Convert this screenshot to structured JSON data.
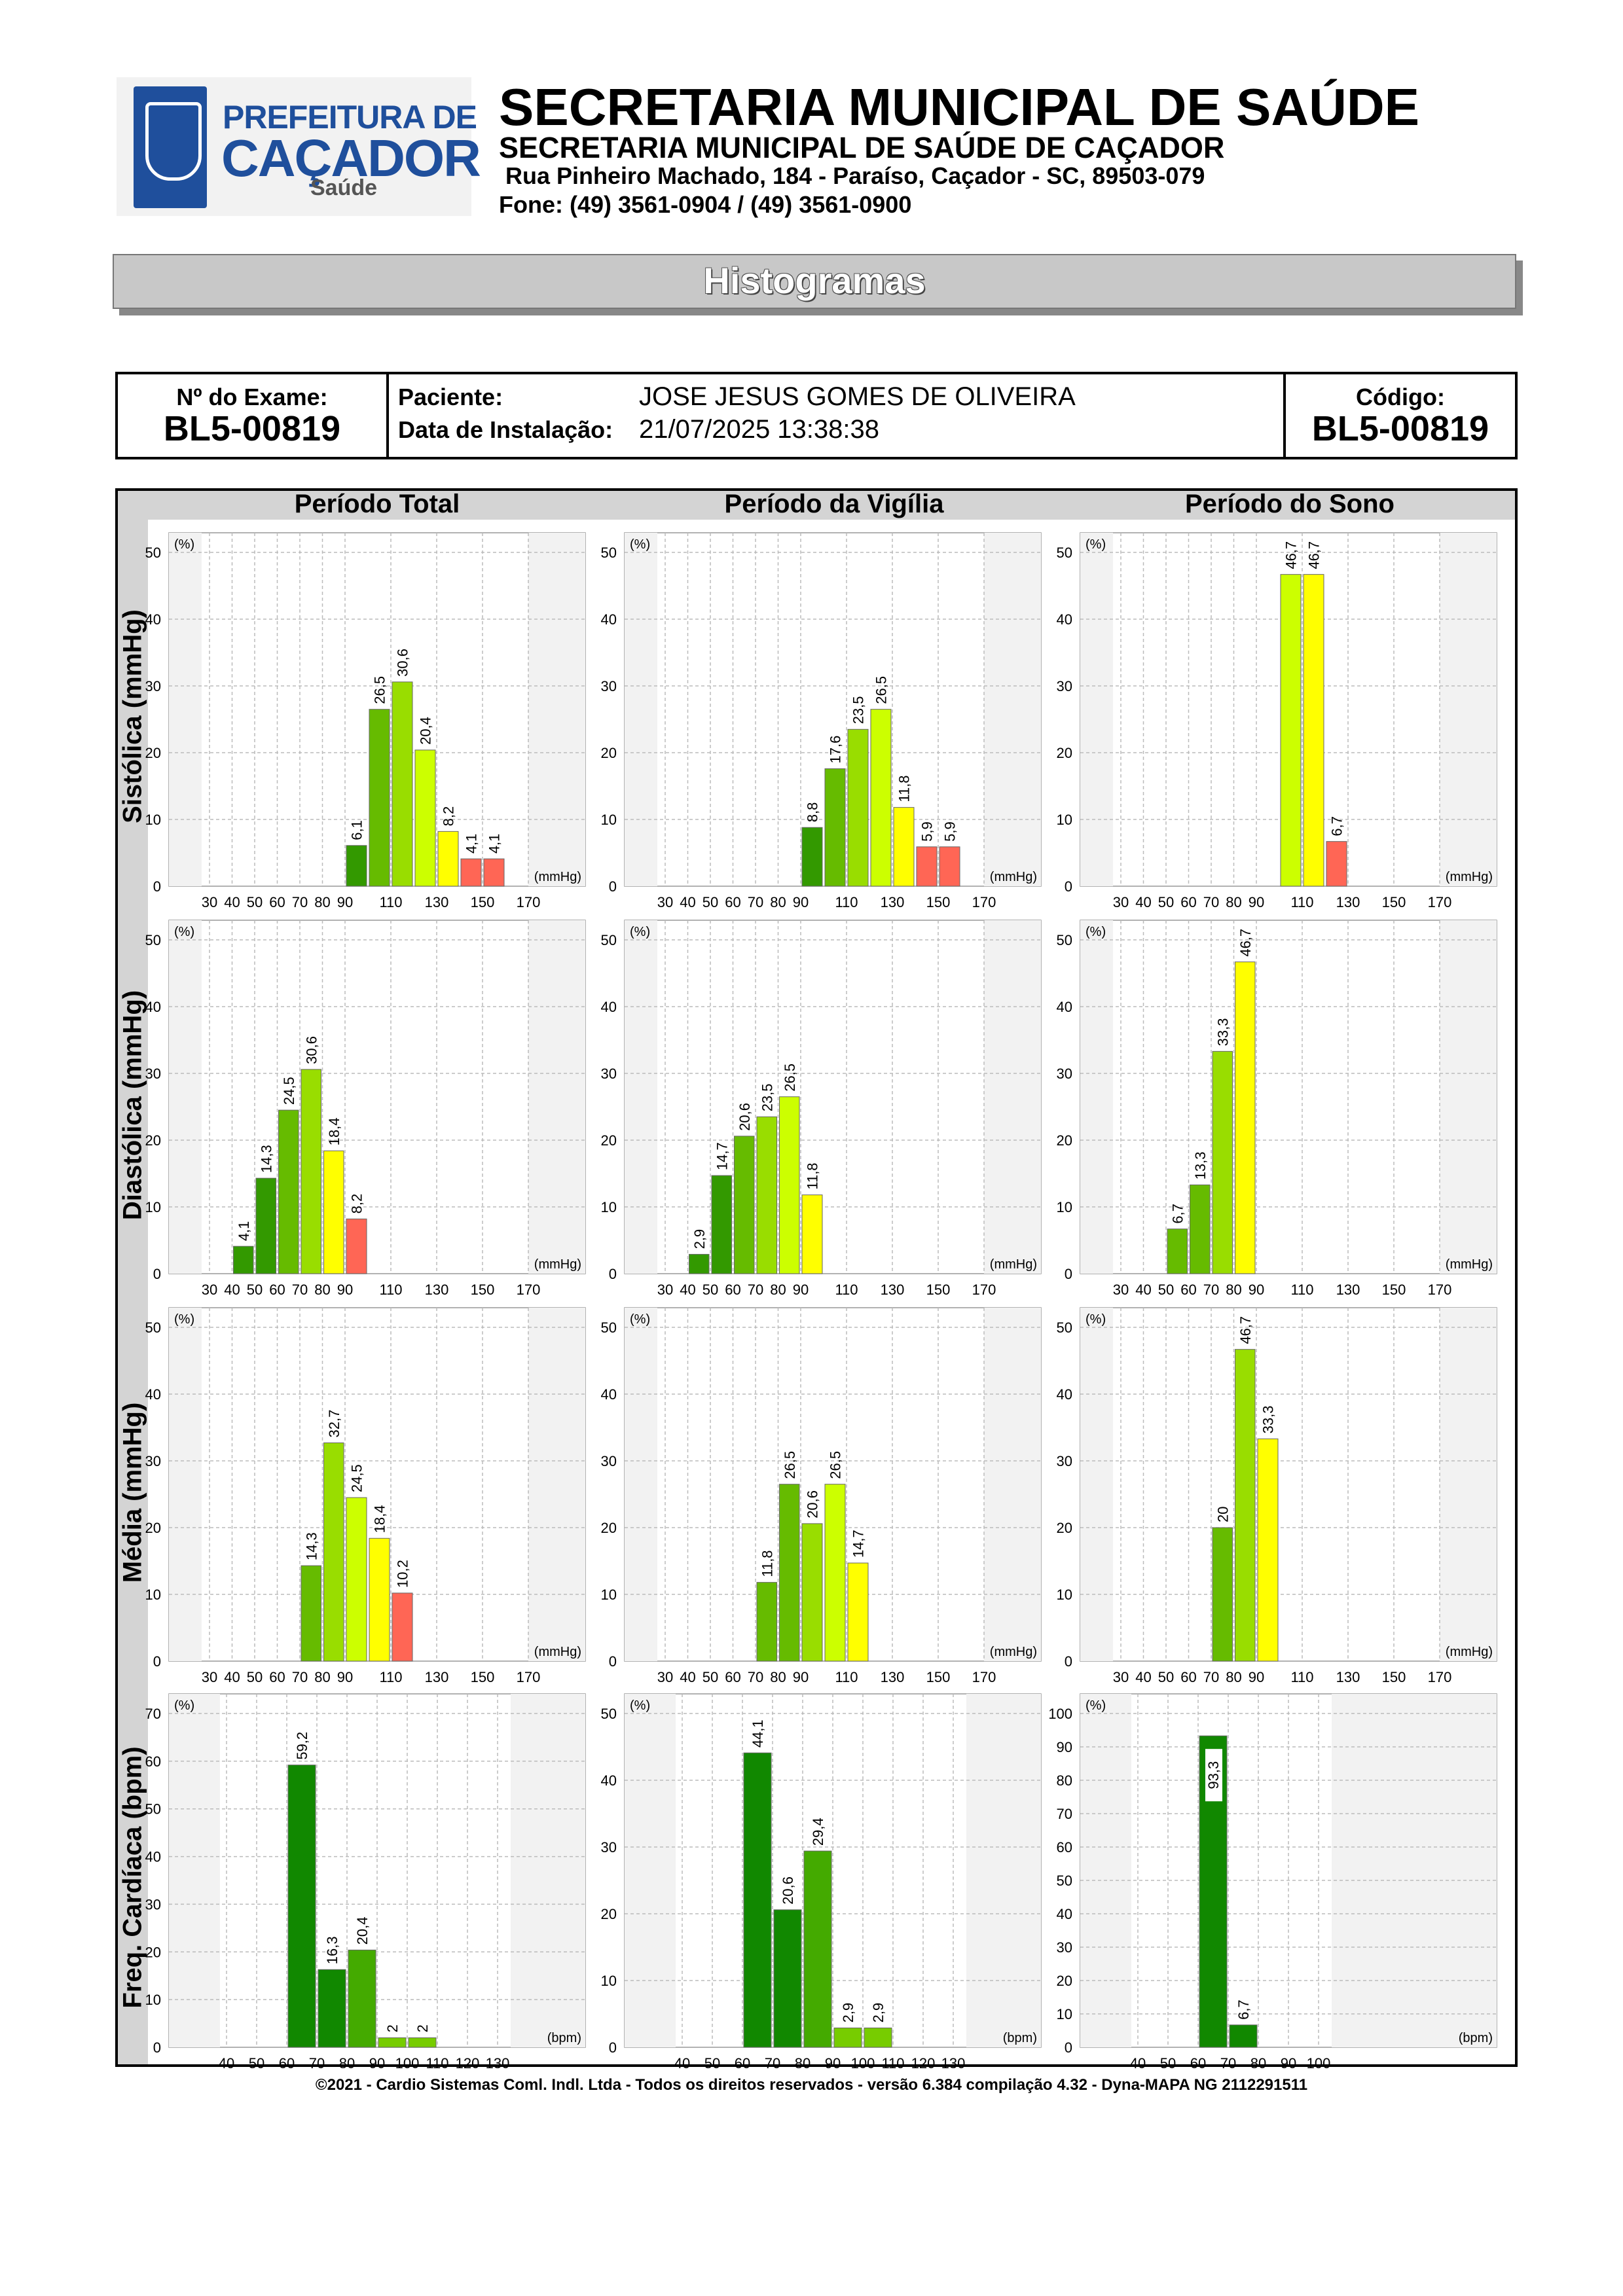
{
  "header": {
    "logo_line1": "PREFEITURA DE",
    "logo_line2": "CAÇADOR",
    "logo_line3": "Saúde",
    "title": "SECRETARIA MUNICIPAL DE SAÚDE",
    "subtitle": "SECRETARIA MUNICIPAL DE SAÚDE DE CAÇADOR",
    "address": "Rua Pinheiro Machado, 184 - Paraíso, Caçador - SC, 89503-079",
    "phone": "Fone: (49) 3561-0904  / (49) 3561-0900"
  },
  "banner": "Histogramas",
  "info": {
    "exam_label": "Nº do Exame:",
    "exam_value": "BL5-00819",
    "patient_label": "Paciente:",
    "patient_value": "JOSE JESUS GOMES DE OLIVEIRA",
    "install_label": "Data de Instalação:",
    "install_value": "21/07/2025 13:38:38",
    "code_label": "Código:",
    "code_value": "BL5-00819"
  },
  "columns": [
    "Período Total",
    "Período da Vigília",
    "Período do Sono"
  ],
  "rows": [
    "Sistólica (mmHg)",
    "Diastólica (mmHg)",
    "Média (mmHg)",
    "Freq. Cardíaca (bpm)"
  ],
  "colors": {
    "dark_green": "#339900",
    "green": "#66bb00",
    "light_green": "#99dd00",
    "yellow_green": "#ccff00",
    "yellow": "#ffff00",
    "salmon": "#ff6655",
    "hr_green": "#118800",
    "hr_light": "#44aa00",
    "hr_lighter": "#77cc00",
    "band": "#f2f2f2"
  },
  "chart_data": [
    {
      "type": "bar",
      "row": "Sistólica (mmHg)",
      "column": "Período Total",
      "xlabel": "(mmHg)",
      "ylabel": "(%)",
      "ylim": [
        0,
        50
      ],
      "yticks": [
        0,
        10,
        20,
        30,
        40,
        50
      ],
      "xtick_labels": [
        "30",
        "40",
        "50",
        "60",
        "70",
        "80",
        "90",
        "110",
        "130",
        "150",
        "170"
      ],
      "bars": [
        {
          "x": 90,
          "value": 6.1,
          "label": "6,1",
          "color": "dark_green"
        },
        {
          "x": 100,
          "value": 26.5,
          "label": "26,5",
          "color": "green"
        },
        {
          "x": 110,
          "value": 30.6,
          "label": "30,6",
          "color": "light_green"
        },
        {
          "x": 120,
          "value": 20.4,
          "label": "20,4",
          "color": "yellow_green"
        },
        {
          "x": 130,
          "value": 8.2,
          "label": "8,2",
          "color": "yellow"
        },
        {
          "x": 140,
          "value": 4.1,
          "label": "4,1",
          "color": "salmon"
        },
        {
          "x": 150,
          "value": 4.1,
          "label": "4,1",
          "color": "salmon"
        }
      ]
    },
    {
      "type": "bar",
      "row": "Sistólica (mmHg)",
      "column": "Período da Vigília",
      "xlabel": "(mmHg)",
      "ylabel": "(%)",
      "ylim": [
        0,
        50
      ],
      "yticks": [
        0,
        10,
        20,
        30,
        40,
        50
      ],
      "xtick_labels": [
        "30",
        "40",
        "50",
        "60",
        "70",
        "80",
        "90",
        "110",
        "130",
        "150",
        "170"
      ],
      "bars": [
        {
          "x": 90,
          "value": 8.8,
          "label": "8,8",
          "color": "dark_green"
        },
        {
          "x": 100,
          "value": 17.6,
          "label": "17,6",
          "color": "green"
        },
        {
          "x": 110,
          "value": 23.5,
          "label": "23,5",
          "color": "light_green"
        },
        {
          "x": 120,
          "value": 26.5,
          "label": "26,5",
          "color": "yellow_green"
        },
        {
          "x": 130,
          "value": 11.8,
          "label": "11,8",
          "color": "yellow"
        },
        {
          "x": 140,
          "value": 5.9,
          "label": "5,9",
          "color": "salmon"
        },
        {
          "x": 150,
          "value": 5.9,
          "label": "5,9",
          "color": "salmon"
        }
      ]
    },
    {
      "type": "bar",
      "row": "Sistólica (mmHg)",
      "column": "Período do Sono",
      "xlabel": "(mmHg)",
      "ylabel": "(%)",
      "ylim": [
        0,
        50
      ],
      "yticks": [
        0,
        10,
        20,
        30,
        40,
        50
      ],
      "xtick_labels": [
        "30",
        "40",
        "50",
        "60",
        "70",
        "80",
        "90",
        "110",
        "130",
        "150",
        "170"
      ],
      "bars": [
        {
          "x": 100,
          "value": 46.7,
          "label": "46,7",
          "color": "yellow_green"
        },
        {
          "x": 110,
          "value": 46.7,
          "label": "46,7",
          "color": "yellow"
        },
        {
          "x": 120,
          "value": 6.7,
          "label": "6,7",
          "color": "salmon"
        }
      ]
    },
    {
      "type": "bar",
      "row": "Diastólica (mmHg)",
      "column": "Período Total",
      "xlabel": "(mmHg)",
      "ylabel": "(%)",
      "ylim": [
        0,
        50
      ],
      "yticks": [
        0,
        10,
        20,
        30,
        40,
        50
      ],
      "xtick_labels": [
        "30",
        "40",
        "50",
        "60",
        "70",
        "80",
        "90",
        "110",
        "130",
        "150",
        "170"
      ],
      "bars": [
        {
          "x": 40,
          "value": 4.1,
          "label": "4,1",
          "color": "dark_green"
        },
        {
          "x": 50,
          "value": 14.3,
          "label": "14,3",
          "color": "dark_green"
        },
        {
          "x": 60,
          "value": 24.5,
          "label": "24,5",
          "color": "green"
        },
        {
          "x": 70,
          "value": 30.6,
          "label": "30,6",
          "color": "light_green"
        },
        {
          "x": 80,
          "value": 18.4,
          "label": "18,4",
          "color": "yellow"
        },
        {
          "x": 90,
          "value": 8.2,
          "label": "8,2",
          "color": "salmon"
        }
      ]
    },
    {
      "type": "bar",
      "row": "Diastólica (mmHg)",
      "column": "Período da Vigília",
      "xlabel": "(mmHg)",
      "ylabel": "(%)",
      "ylim": [
        0,
        50
      ],
      "yticks": [
        0,
        10,
        20,
        30,
        40,
        50
      ],
      "xtick_labels": [
        "30",
        "40",
        "50",
        "60",
        "70",
        "80",
        "90",
        "110",
        "130",
        "150",
        "170"
      ],
      "bars": [
        {
          "x": 40,
          "value": 2.9,
          "label": "2,9",
          "color": "dark_green"
        },
        {
          "x": 50,
          "value": 14.7,
          "label": "14,7",
          "color": "dark_green"
        },
        {
          "x": 60,
          "value": 20.6,
          "label": "20,6",
          "color": "green"
        },
        {
          "x": 70,
          "value": 23.5,
          "label": "23,5",
          "color": "light_green"
        },
        {
          "x": 80,
          "value": 26.5,
          "label": "26,5",
          "color": "yellow_green"
        },
        {
          "x": 90,
          "value": 11.8,
          "label": "11,8",
          "color": "yellow"
        }
      ]
    },
    {
      "type": "bar",
      "row": "Diastólica (mmHg)",
      "column": "Período do Sono",
      "xlabel": "(mmHg)",
      "ylabel": "(%)",
      "ylim": [
        0,
        50
      ],
      "yticks": [
        0,
        10,
        20,
        30,
        40,
        50
      ],
      "xtick_labels": [
        "30",
        "40",
        "50",
        "60",
        "70",
        "80",
        "90",
        "110",
        "130",
        "150",
        "170"
      ],
      "bars": [
        {
          "x": 50,
          "value": 6.7,
          "label": "6,7",
          "color": "green"
        },
        {
          "x": 60,
          "value": 13.3,
          "label": "13,3",
          "color": "green"
        },
        {
          "x": 70,
          "value": 33.3,
          "label": "33,3",
          "color": "light_green"
        },
        {
          "x": 80,
          "value": 46.7,
          "label": "46,7",
          "color": "yellow"
        }
      ]
    },
    {
      "type": "bar",
      "row": "Média (mmHg)",
      "column": "Período Total",
      "xlabel": "(mmHg)",
      "ylabel": "(%)",
      "ylim": [
        0,
        50
      ],
      "yticks": [
        0,
        10,
        20,
        30,
        40,
        50
      ],
      "xtick_labels": [
        "30",
        "40",
        "50",
        "60",
        "70",
        "80",
        "90",
        "110",
        "130",
        "150",
        "170"
      ],
      "bars": [
        {
          "x": 70,
          "value": 14.3,
          "label": "14,3",
          "color": "green"
        },
        {
          "x": 80,
          "value": 32.7,
          "label": "32,7",
          "color": "light_green"
        },
        {
          "x": 90,
          "value": 24.5,
          "label": "24,5",
          "color": "yellow_green"
        },
        {
          "x": 100,
          "value": 18.4,
          "label": "18,4",
          "color": "yellow"
        },
        {
          "x": 110,
          "value": 10.2,
          "label": "10,2",
          "color": "salmon"
        }
      ]
    },
    {
      "type": "bar",
      "row": "Média (mmHg)",
      "column": "Período da Vigília",
      "xlabel": "(mmHg)",
      "ylabel": "(%)",
      "ylim": [
        0,
        50
      ],
      "yticks": [
        0,
        10,
        20,
        30,
        40,
        50
      ],
      "xtick_labels": [
        "30",
        "40",
        "50",
        "60",
        "70",
        "80",
        "90",
        "110",
        "130",
        "150",
        "170"
      ],
      "bars": [
        {
          "x": 70,
          "value": 11.8,
          "label": "11,8",
          "color": "green"
        },
        {
          "x": 80,
          "value": 26.5,
          "label": "26,5",
          "color": "green"
        },
        {
          "x": 90,
          "value": 20.6,
          "label": "20,6",
          "color": "light_green"
        },
        {
          "x": 100,
          "value": 26.5,
          "label": "26,5",
          "color": "yellow_green"
        },
        {
          "x": 110,
          "value": 14.7,
          "label": "14,7",
          "color": "yellow"
        }
      ]
    },
    {
      "type": "bar",
      "row": "Média (mmHg)",
      "column": "Período do Sono",
      "xlabel": "(mmHg)",
      "ylabel": "(%)",
      "ylim": [
        0,
        50
      ],
      "yticks": [
        0,
        10,
        20,
        30,
        40,
        50
      ],
      "xtick_labels": [
        "30",
        "40",
        "50",
        "60",
        "70",
        "80",
        "90",
        "110",
        "130",
        "150",
        "170"
      ],
      "bars": [
        {
          "x": 70,
          "value": 20,
          "label": "20",
          "color": "green"
        },
        {
          "x": 80,
          "value": 46.7,
          "label": "46,7",
          "color": "light_green"
        },
        {
          "x": 90,
          "value": 33.3,
          "label": "33,3",
          "color": "yellow"
        }
      ]
    },
    {
      "type": "bar",
      "row": "Freq. Cardíaca (bpm)",
      "column": "Período Total",
      "xlabel": "(bpm)",
      "ylabel": "(%)",
      "ylim": [
        0,
        70
      ],
      "yticks": [
        0,
        10,
        20,
        30,
        40,
        50,
        60,
        70
      ],
      "xtick_labels": [
        "40",
        "50",
        "60",
        "70",
        "80",
        "90",
        "100",
        "110",
        "120",
        "130"
      ],
      "bars": [
        {
          "x": 60,
          "value": 59.2,
          "label": "59,2",
          "color": "hr_green"
        },
        {
          "x": 70,
          "value": 16.3,
          "label": "16,3",
          "color": "hr_green"
        },
        {
          "x": 80,
          "value": 20.4,
          "label": "20,4",
          "color": "hr_light"
        },
        {
          "x": 90,
          "value": 2,
          "label": "2",
          "color": "hr_lighter"
        },
        {
          "x": 100,
          "value": 2,
          "label": "2",
          "color": "hr_lighter"
        }
      ]
    },
    {
      "type": "bar",
      "row": "Freq. Cardíaca (bpm)",
      "column": "Período da Vigília",
      "xlabel": "(bpm)",
      "ylabel": "(%)",
      "ylim": [
        0,
        50
      ],
      "yticks": [
        0,
        10,
        20,
        30,
        40,
        50
      ],
      "xtick_labels": [
        "40",
        "50",
        "60",
        "70",
        "80",
        "90",
        "100",
        "110",
        "120",
        "130"
      ],
      "bars": [
        {
          "x": 60,
          "value": 44.1,
          "label": "44,1",
          "color": "hr_green"
        },
        {
          "x": 70,
          "value": 20.6,
          "label": "20,6",
          "color": "hr_green"
        },
        {
          "x": 80,
          "value": 29.4,
          "label": "29,4",
          "color": "hr_light"
        },
        {
          "x": 90,
          "value": 2.9,
          "label": "2,9",
          "color": "hr_lighter"
        },
        {
          "x": 100,
          "value": 2.9,
          "label": "2,9",
          "color": "hr_lighter"
        }
      ]
    },
    {
      "type": "bar",
      "row": "Freq. Cardíaca (bpm)",
      "column": "Período do Sono",
      "xlabel": "(bpm)",
      "ylabel": "(%)",
      "ylim": [
        0,
        100
      ],
      "yticks": [
        0,
        10,
        20,
        30,
        40,
        50,
        60,
        70,
        80,
        90,
        100
      ],
      "xtick_labels": [
        "40",
        "50",
        "60",
        "70",
        "80",
        "90",
        "100"
      ],
      "bars": [
        {
          "x": 60,
          "value": 93.3,
          "label": "93,3",
          "color": "hr_green",
          "label_inside": true
        },
        {
          "x": 70,
          "value": 6.7,
          "label": "6,7",
          "color": "hr_green"
        }
      ]
    }
  ],
  "footer": "©2021 - Cardio Sistemas Coml. Indl. Ltda - Todos os direitos reservados - versão 6.384 compilação 4.32 - Dyna-MAPA NG 2112291511"
}
